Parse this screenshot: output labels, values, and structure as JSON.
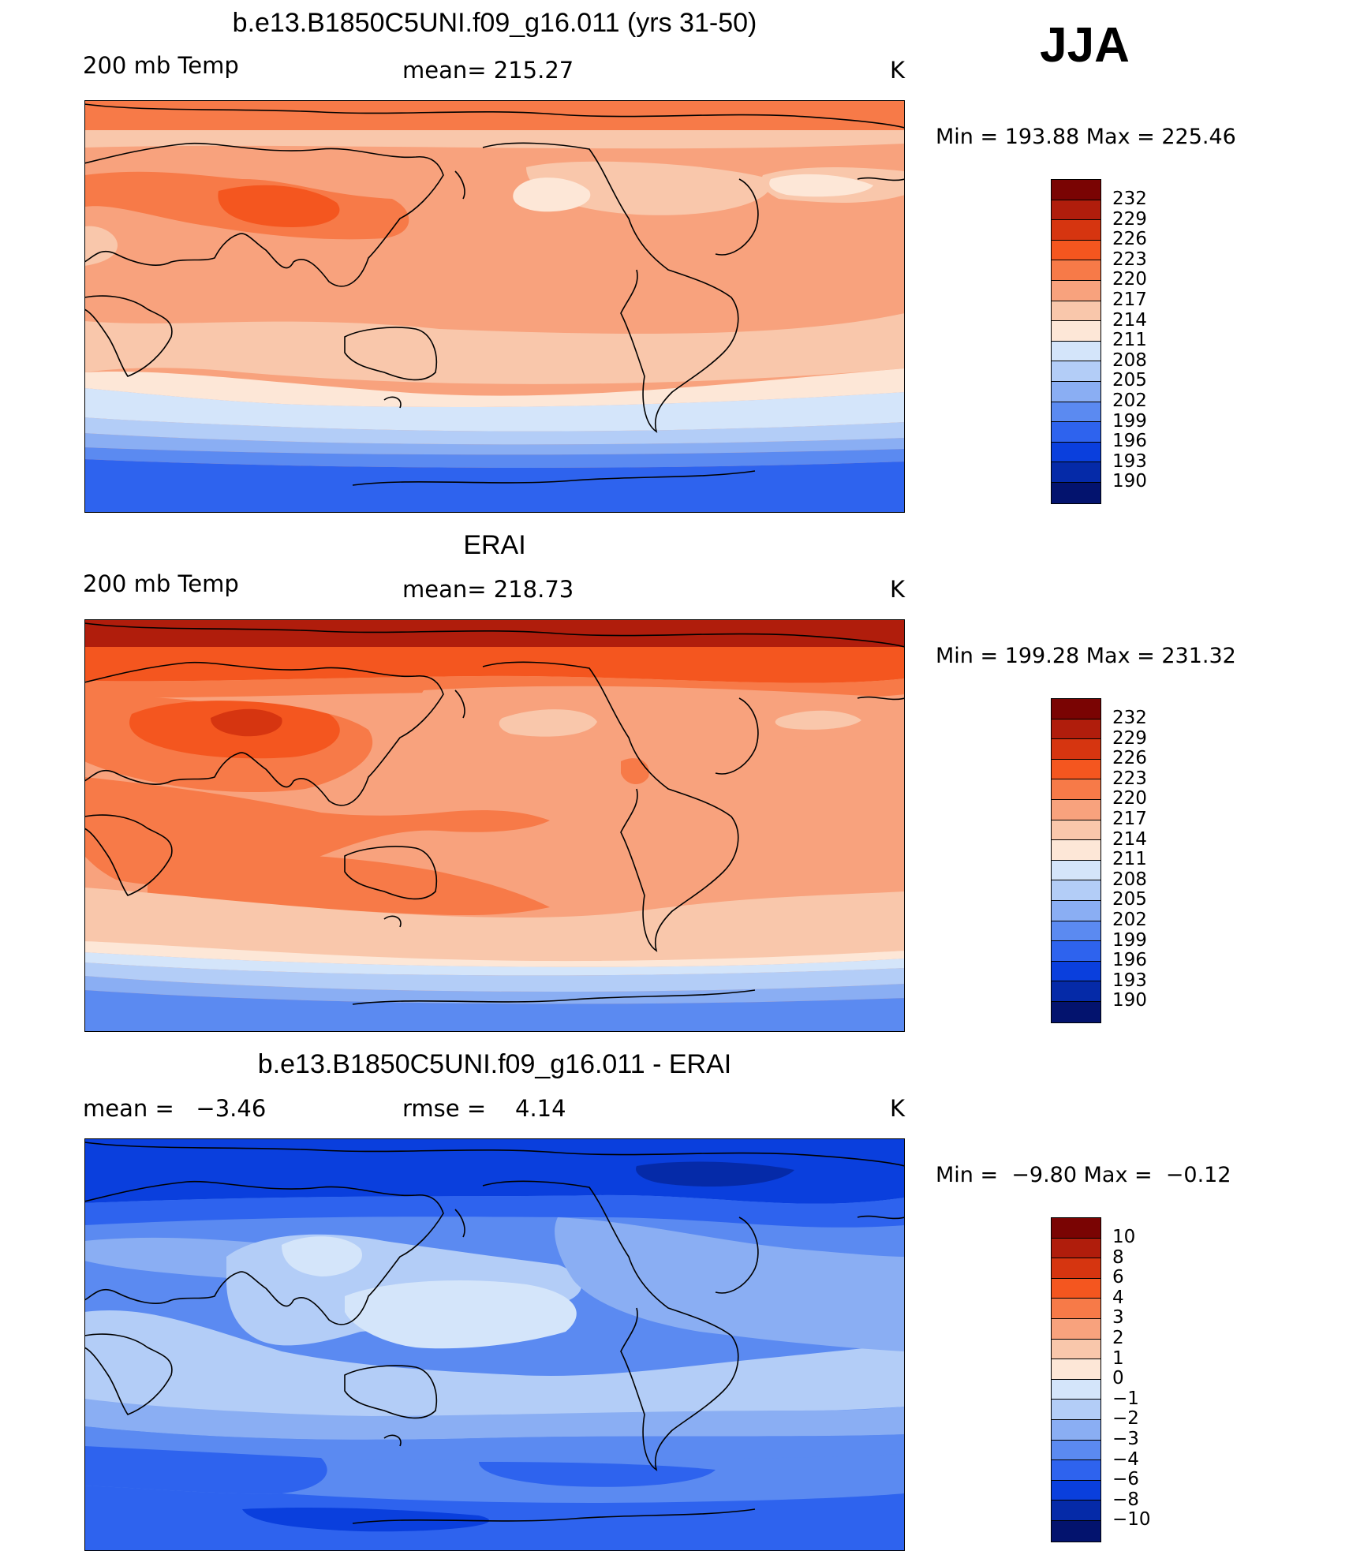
{
  "season": "JJA",
  "panels": [
    {
      "title": "b.e13.B1850C5UNI.f09_g16.011 (yrs 31-50)",
      "left_label": "200 mb Temp",
      "center_label": "mean= 215.27",
      "units": "K",
      "min_max": "Min = 193.88 Max = 225.46",
      "colorbar": {
        "labels": [
          "232",
          "229",
          "226",
          "223",
          "220",
          "217",
          "214",
          "211",
          "208",
          "205",
          "202",
          "199",
          "196",
          "193",
          "190"
        ],
        "colors": [
          "#7a0403",
          "#b01d0c",
          "#d63510",
          "#f4561f",
          "#f77a48",
          "#f8a27d",
          "#f9c7ab",
          "#fde7d7",
          "#d4e5fa",
          "#b3cdf7",
          "#8aaef3",
          "#5b8af1",
          "#2e63ee",
          "#0a3fdd",
          "#052aa8",
          "#03136e"
        ]
      },
      "field_levels": [
        "#f77a48",
        "#f8a27d",
        "#f9c7ab",
        "#fde7d7",
        "#d4e5fa",
        "#b3cdf7",
        "#8aaef3",
        "#5b8af1",
        "#2e63ee",
        "#0a3fdd"
      ]
    },
    {
      "title": "ERAI",
      "left_label": "200 mb Temp",
      "center_label": "mean= 218.73",
      "units": "K",
      "min_max": "Min = 199.28 Max = 231.32",
      "colorbar": {
        "labels": [
          "232",
          "229",
          "226",
          "223",
          "220",
          "217",
          "214",
          "211",
          "208",
          "205",
          "202",
          "199",
          "196",
          "193",
          "190"
        ],
        "colors": [
          "#7a0403",
          "#b01d0c",
          "#d63510",
          "#f4561f",
          "#f77a48",
          "#f8a27d",
          "#f9c7ab",
          "#fde7d7",
          "#d4e5fa",
          "#b3cdf7",
          "#8aaef3",
          "#5b8af1",
          "#2e63ee",
          "#0a3fdd",
          "#052aa8",
          "#03136e"
        ]
      }
    },
    {
      "title": "b.e13.B1850C5UNI.f09_g16.011 - ERAI",
      "left_label": "mean =   −3.46",
      "center_label": "rmse =    4.14",
      "units": "K",
      "min_max": "Min =  −9.80 Max =  −0.12",
      "colorbar": {
        "labels": [
          "10",
          "8",
          "6",
          "4",
          "3",
          "2",
          "1",
          "0",
          "−1",
          "−2",
          "−3",
          "−4",
          "−6",
          "−8",
          "−10"
        ],
        "colors": [
          "#7a0403",
          "#b01d0c",
          "#d63510",
          "#f4561f",
          "#f77a48",
          "#f8a27d",
          "#f9c7ab",
          "#fde7d7",
          "#d4e5fa",
          "#b3cdf7",
          "#8aaef3",
          "#5b8af1",
          "#2e63ee",
          "#0a3fdd",
          "#052aa8",
          "#03136e"
        ]
      }
    }
  ]
}
